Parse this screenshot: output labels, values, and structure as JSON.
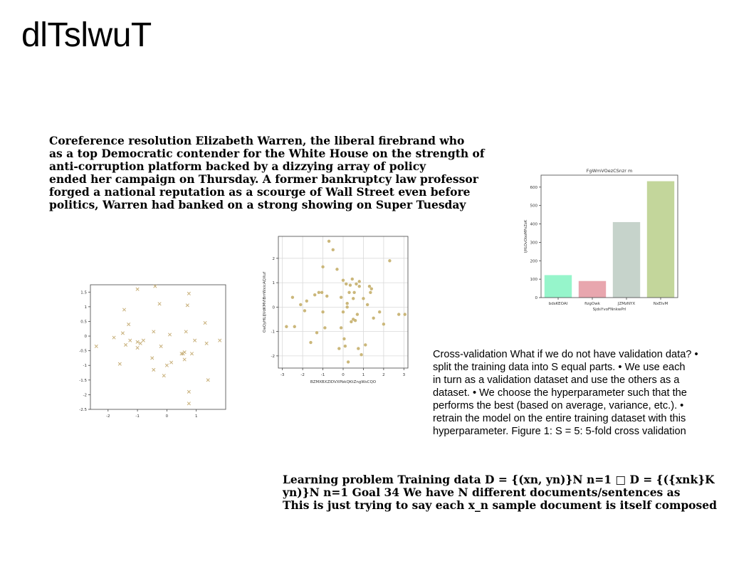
{
  "page": {
    "title": "dlTslwuT"
  },
  "text_blocks": {
    "coref": [
      "Coreference resolution Elizabeth Warren, the liberal firebrand who",
      "as a top Democratic contender for the White House on the strength of",
      "anti-corruption platform backed by a dizzying array of policy",
      "ended her campaign on Thursday. A former bankruptcy law professor",
      "forged a national reputation as a scourge of Wall Street even before",
      "politics, Warren had banked on a strong showing on Super Tuesday"
    ],
    "crossval": [
      "Cross-validation What if we do not have validation data? •",
      "split the training data into S equal parts. • We use each",
      "in turn as a validation dataset and use the others as a",
      "dataset. • We choose the hyperparameter such that the",
      "performs the best (based on average, variance, etc.). •",
      "retrain the model on the entire training dataset with this",
      "hyperparameter. Figure 1: S = 5: 5-fold cross validation"
    ],
    "learning": [
      "Learning problem Training data D = {(xn, yn)}N n=1 □ D = {({xnk}K",
      "yn)}N n=1 Goal 34 We have N different documents/sentences as",
      "This is just trying to say each x_n sample document is itself composed"
    ]
  },
  "chart_data": [
    {
      "type": "scatter",
      "marker": "x",
      "color": "#c8b07a",
      "title": "",
      "xlabel": "",
      "ylabel": "",
      "xlim": [
        -2.6,
        2.0
      ],
      "ylim": [
        -2.5,
        1.75
      ],
      "xticks": [
        -2,
        -1,
        0,
        1
      ],
      "yticks": [
        -2.5,
        -2.0,
        -1.5,
        -1.0,
        -0.5,
        0.0,
        0.5,
        1.0,
        1.5
      ],
      "grid": false,
      "x": [
        -2.4,
        -1.8,
        -1.6,
        -1.5,
        -1.45,
        -1.4,
        -1.3,
        -1.25,
        -1.0,
        -1.0,
        -1.0,
        -0.9,
        -0.8,
        -0.5,
        -0.45,
        -0.45,
        -0.4,
        -0.25,
        -0.2,
        -0.1,
        0.0,
        0.1,
        0.15,
        0.5,
        0.55,
        0.6,
        0.6,
        0.65,
        0.7,
        0.75,
        0.75,
        0.75,
        0.85,
        0.95,
        1.3,
        1.35,
        1.4,
        1.8
      ],
      "y": [
        -0.35,
        -0.05,
        -0.95,
        0.1,
        0.9,
        -0.3,
        0.4,
        -0.15,
        1.6,
        -0.2,
        -0.4,
        -0.25,
        -0.15,
        -0.75,
        0.15,
        -1.15,
        1.7,
        1.1,
        -0.35,
        -1.35,
        -1.0,
        0.05,
        -0.9,
        -0.6,
        -0.6,
        -0.8,
        -0.55,
        0.15,
        1.05,
        1.45,
        -1.9,
        -2.3,
        -0.6,
        -0.15,
        0.45,
        -0.25,
        -1.5,
        -0.15
      ]
    },
    {
      "type": "scatter",
      "marker": "o",
      "color": "#cbb77a",
      "title": "",
      "xlabel": "BZMXBXZIDVXPbkQKtZngWsCQO",
      "ylabel": "OaQyHLIJVdKMVlBrrWxicAQXuf",
      "xlim": [
        -3.2,
        3.2
      ],
      "ylim": [
        -2.5,
        2.9
      ],
      "xticks": [
        -3,
        -2,
        -1,
        0,
        1,
        2,
        3
      ],
      "yticks": [
        -2,
        -1,
        0,
        1,
        2
      ],
      "grid": true,
      "x": [
        -2.8,
        -2.5,
        -2.4,
        -2.1,
        -1.9,
        -1.8,
        -1.6,
        -1.4,
        -1.3,
        -1.2,
        -1.0,
        -1.0,
        -0.9,
        -0.8,
        -0.7,
        -0.5,
        -0.3,
        -0.2,
        -0.1,
        0.0,
        0.0,
        0.05,
        0.1,
        0.15,
        0.2,
        0.25,
        0.3,
        0.35,
        0.4,
        0.45,
        0.5,
        0.55,
        0.6,
        0.65,
        0.7,
        0.75,
        0.8,
        0.9,
        1.0,
        1.1,
        1.2,
        1.3,
        1.35,
        1.4,
        1.5,
        1.8,
        2.0,
        2.3,
        2.75,
        3.05,
        -1.05,
        -0.1,
        0.5,
        0.2,
        0.8
      ],
      "y": [
        -0.8,
        0.4,
        -0.8,
        0.1,
        -0.15,
        0.25,
        -1.45,
        0.5,
        -1.05,
        0.6,
        1.65,
        -0.2,
        -0.85,
        0.45,
        2.7,
        2.35,
        1.55,
        -1.7,
        0.4,
        1.1,
        -0.2,
        -1.3,
        -1.6,
        0.95,
        0.0,
        -2.25,
        0.6,
        0.9,
        -0.6,
        1.15,
        0.35,
        0.6,
        -0.55,
        0.95,
        -0.3,
        -1.7,
        1.05,
        -1.95,
        0.35,
        -1.55,
        0.1,
        0.85,
        0.6,
        0.75,
        -0.45,
        -0.2,
        -0.7,
        1.9,
        -0.3,
        -0.3,
        0.6,
        -0.85,
        -0.5,
        0.15,
        0.85
      ]
    },
    {
      "type": "bar",
      "title": "FgWmVOezCSnzr m",
      "xlabel": "SjdsYvoFNnkwPrl",
      "ylabel": "ljHLOvOboMPxZoK",
      "categories": [
        "bdsKEOAI",
        "fizgOwk",
        "JZMzNYX",
        "NxEIvM"
      ],
      "values": [
        122,
        90,
        410,
        632
      ],
      "colors": [
        "#96f5cb",
        "#e8a6ae",
        "#c6d3cb",
        "#c3d69b"
      ],
      "ylim": [
        0,
        665
      ],
      "yticks": [
        0,
        100,
        200,
        300,
        400,
        500,
        600
      ],
      "grid": false
    }
  ]
}
